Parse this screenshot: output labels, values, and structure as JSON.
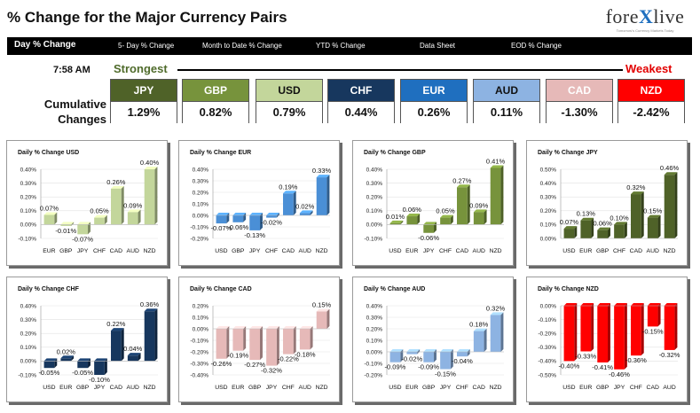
{
  "header": {
    "title": "% Change for the Major Currency Pairs",
    "logo_left": "fore",
    "logo_x": "X",
    "logo_right": "live",
    "logo_tagline": "Tomorrow's Currency Markets Today"
  },
  "nav": {
    "tabs": [
      {
        "label": "Day % Change",
        "active": true
      },
      {
        "label": "5- Day % Change",
        "active": false
      },
      {
        "label": "Month to Date % Change",
        "active": false
      },
      {
        "label": "YTD % Change",
        "active": false
      },
      {
        "label": "Data Sheet",
        "active": false
      },
      {
        "label": "EOD % Change",
        "active": false
      }
    ]
  },
  "ranking": {
    "time": "7:58 AM",
    "strongest_label": "Strongest",
    "weakest_label": "Weakest",
    "cumulative_label_1": "Cumulative",
    "cumulative_label_2": "Changes",
    "currencies": [
      {
        "name": "JPY",
        "value": "1.29%",
        "bg": "#4f6228",
        "fg": "#ffffff"
      },
      {
        "name": "GBP",
        "value": "0.82%",
        "bg": "#77933c",
        "fg": "#ffffff"
      },
      {
        "name": "USD",
        "value": "0.79%",
        "bg": "#c3d69b",
        "fg": "#111111"
      },
      {
        "name": "CHF",
        "value": "0.44%",
        "bg": "#17375e",
        "fg": "#ffffff"
      },
      {
        "name": "EUR",
        "value": "0.26%",
        "bg": "#1f6fbf",
        "fg": "#ffffff"
      },
      {
        "name": "AUD",
        "value": "0.11%",
        "bg": "#8db3e2",
        "fg": "#111111"
      },
      {
        "name": "CAD",
        "value": "-1.30%",
        "bg": "#e6b9b8",
        "fg": "#ffffff"
      },
      {
        "name": "NZD",
        "value": "-2.42%",
        "bg": "#ff0000",
        "fg": "#ffffff"
      }
    ]
  },
  "chart_data": [
    {
      "type": "bar",
      "title": "Daily % Change USD",
      "color": "#c3d69b",
      "categories": [
        "EUR",
        "GBP",
        "JPY",
        "CHF",
        "CAD",
        "AUD",
        "NZD"
      ],
      "values": [
        0.07,
        -0.01,
        -0.07,
        0.05,
        0.26,
        0.09,
        0.4
      ],
      "labels": [
        "0.07%",
        "-0.01%",
        "-0.07%",
        "0.05%",
        "0.26%",
        "0.09%",
        "0.40%"
      ],
      "ylim": [
        -0.1,
        0.4
      ],
      "yticks": [
        "0.40%",
        "0.30%",
        "0.20%",
        "0.10%",
        "0.00%",
        "-0.10%"
      ]
    },
    {
      "type": "bar",
      "title": "Daily % Change EUR",
      "color": "#4a8fd6",
      "categories": [
        "USD",
        "GBP",
        "JPY",
        "CHF",
        "CAD",
        "AUD",
        "NZD"
      ],
      "values": [
        -0.07,
        -0.06,
        -0.13,
        -0.02,
        0.19,
        0.02,
        0.33
      ],
      "labels": [
        "-0.07%",
        "-0.06%",
        "-0.13%",
        "-0.02%",
        "0.19%",
        "0.02%",
        "0.33%"
      ],
      "ylim": [
        -0.2,
        0.4
      ],
      "yticks": [
        "0.40%",
        "0.30%",
        "0.20%",
        "0.10%",
        "0.00%",
        "-0.10%",
        "-0.20%"
      ]
    },
    {
      "type": "bar",
      "title": "Daily % Change GBP",
      "color": "#77933c",
      "categories": [
        "USD",
        "EUR",
        "JPY",
        "CHF",
        "CAD",
        "AUD",
        "NZD"
      ],
      "values": [
        0.01,
        0.06,
        -0.06,
        0.05,
        0.27,
        0.09,
        0.41
      ],
      "labels": [
        "0.01%",
        "0.06%",
        "-0.06%",
        "0.05%",
        "0.27%",
        "0.09%",
        "0.41%"
      ],
      "ylim": [
        -0.1,
        0.4
      ],
      "yticks": [
        "0.40%",
        "0.30%",
        "0.20%",
        "0.10%",
        "0.00%",
        "-0.10%"
      ]
    },
    {
      "type": "bar",
      "title": "Daily % Change JPY",
      "color": "#4f6228",
      "categories": [
        "USD",
        "EUR",
        "GBP",
        "CHF",
        "CAD",
        "AUD",
        "NZD"
      ],
      "values": [
        0.07,
        0.13,
        0.06,
        0.1,
        0.32,
        0.15,
        0.46
      ],
      "labels": [
        "0.07%",
        "0.13%",
        "0.06%",
        "0.10%",
        "0.32%",
        "0.15%",
        "0.46%"
      ],
      "ylim": [
        0.0,
        0.5
      ],
      "yticks": [
        "0.50%",
        "0.40%",
        "0.30%",
        "0.20%",
        "0.10%",
        "0.00%"
      ]
    },
    {
      "type": "bar",
      "title": "Daily % Change CHF",
      "color": "#17375e",
      "categories": [
        "USD",
        "EUR",
        "GBP",
        "JPY",
        "CAD",
        "AUD",
        "NZD"
      ],
      "values": [
        -0.05,
        0.02,
        -0.05,
        -0.1,
        0.22,
        0.04,
        0.36
      ],
      "labels": [
        "-0.05%",
        "0.02%",
        "-0.05%",
        "-0.10%",
        "0.22%",
        "0.04%",
        "0.36%"
      ],
      "ylim": [
        -0.1,
        0.4
      ],
      "yticks": [
        "0.40%",
        "0.30%",
        "0.20%",
        "0.10%",
        "0.00%",
        "-0.10%"
      ]
    },
    {
      "type": "bar",
      "title": "Daily % Change CAD",
      "color": "#e6b9b8",
      "categories": [
        "USD",
        "EUR",
        "GBP",
        "JPY",
        "CHF",
        "AUD",
        "NZD"
      ],
      "values": [
        -0.26,
        -0.19,
        -0.27,
        -0.32,
        -0.22,
        -0.18,
        0.15
      ],
      "labels": [
        "-0.26%",
        "-0.19%",
        "-0.27%",
        "-0.32%",
        "-0.22%",
        "-0.18%",
        "0.15%"
      ],
      "ylim": [
        -0.4,
        0.2
      ],
      "yticks": [
        "0.20%",
        "0.10%",
        "0.00%",
        "-0.10%",
        "-0.20%",
        "-0.30%",
        "-0.40%"
      ]
    },
    {
      "type": "bar",
      "title": "Daily % Change AUD",
      "color": "#8db3e2",
      "categories": [
        "USD",
        "EUR",
        "GBP",
        "JPY",
        "CHF",
        "CAD",
        "NZD"
      ],
      "values": [
        -0.09,
        -0.02,
        -0.09,
        -0.15,
        -0.04,
        0.18,
        0.32
      ],
      "labels": [
        "-0.09%",
        "-0.02%",
        "-0.09%",
        "-0.15%",
        "-0.04%",
        "0.18%",
        "0.32%"
      ],
      "ylim": [
        -0.2,
        0.4
      ],
      "yticks": [
        "0.40%",
        "0.30%",
        "0.20%",
        "0.10%",
        "0.00%",
        "-0.10%",
        "-0.20%"
      ]
    },
    {
      "type": "bar",
      "title": "Daily % Change NZD",
      "color": "#ff0000",
      "categories": [
        "USD",
        "EUR",
        "GBP",
        "JPY",
        "CHF",
        "CAD",
        "AUD"
      ],
      "values": [
        -0.4,
        -0.33,
        -0.41,
        -0.46,
        -0.36,
        -0.15,
        -0.32
      ],
      "labels": [
        "-0.40%",
        "-0.33%",
        "-0.41%",
        "-0.46%",
        "-0.36%",
        "-0.15%",
        "-0.32%"
      ],
      "ylim": [
        -0.5,
        0.0
      ],
      "yticks": [
        "0.00%",
        "-0.10%",
        "-0.20%",
        "-0.30%",
        "-0.40%",
        "-0.50%"
      ]
    }
  ]
}
